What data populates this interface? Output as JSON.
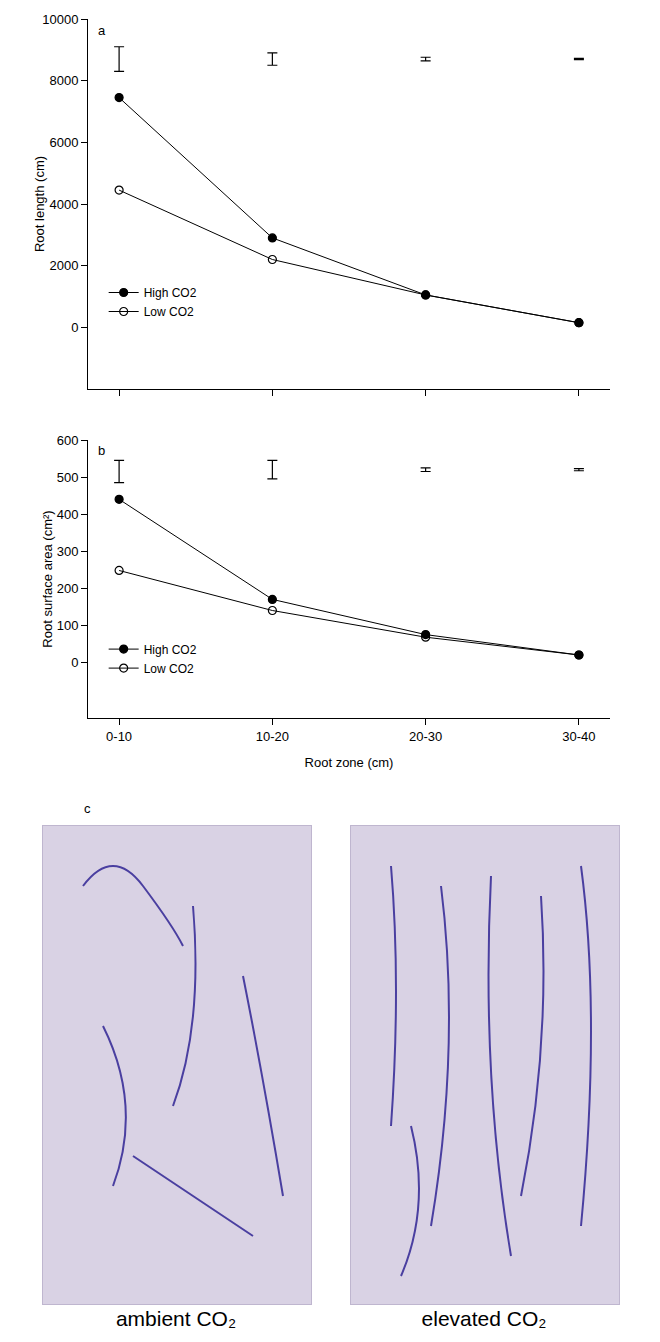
{
  "chart_data": [
    {
      "type": "line",
      "annotations": [
        "a"
      ],
      "categories": [
        "0-10",
        "10-20",
        "20-30",
        "30-40"
      ],
      "y_label": "Root length (cm)",
      "ylim": [
        -2000,
        10000
      ],
      "yticks": [
        0,
        2000,
        4000,
        6000,
        8000,
        10000
      ],
      "tick_labels": "y",
      "legend": "lower left",
      "grid": false,
      "series": [
        {
          "name": "High CO2",
          "color": "#000000",
          "marker": "filled circle",
          "values": [
            7450,
            2900,
            1050,
            150
          ]
        },
        {
          "name": "Low CO2",
          "color": "#000000",
          "marker": "open circle",
          "values": [
            4450,
            2200,
            1050,
            150
          ]
        }
      ],
      "error_bars": {
        "center": [
          8700,
          8700,
          8700,
          8700
        ],
        "half_width": [
          400,
          200,
          60,
          20
        ]
      }
    },
    {
      "type": "line",
      "annotations": [
        "b"
      ],
      "categories": [
        "0-10",
        "10-20",
        "20-30",
        "30-40"
      ],
      "x_label": "Root zone (cm)",
      "y_label": "Root surface area (cm²)",
      "ylim": [
        -150,
        600
      ],
      "yticks": [
        0,
        100,
        200,
        300,
        400,
        500,
        600
      ],
      "legend": "lower left",
      "grid": false,
      "series": [
        {
          "name": "High CO2",
          "color": "#000000",
          "marker": "filled circle",
          "values": [
            440,
            170,
            75,
            20
          ]
        },
        {
          "name": "Low CO2",
          "color": "#000000",
          "marker": "open circle",
          "values": [
            248,
            140,
            68,
            20
          ]
        }
      ],
      "error_bars": {
        "center": [
          515,
          520,
          520,
          520
        ],
        "half_width": [
          30,
          25,
          5,
          3
        ]
      }
    }
  ],
  "panel_c": {
    "label": "c",
    "captions": [
      "ambient CO₂",
      "elevated CO₂"
    ]
  }
}
